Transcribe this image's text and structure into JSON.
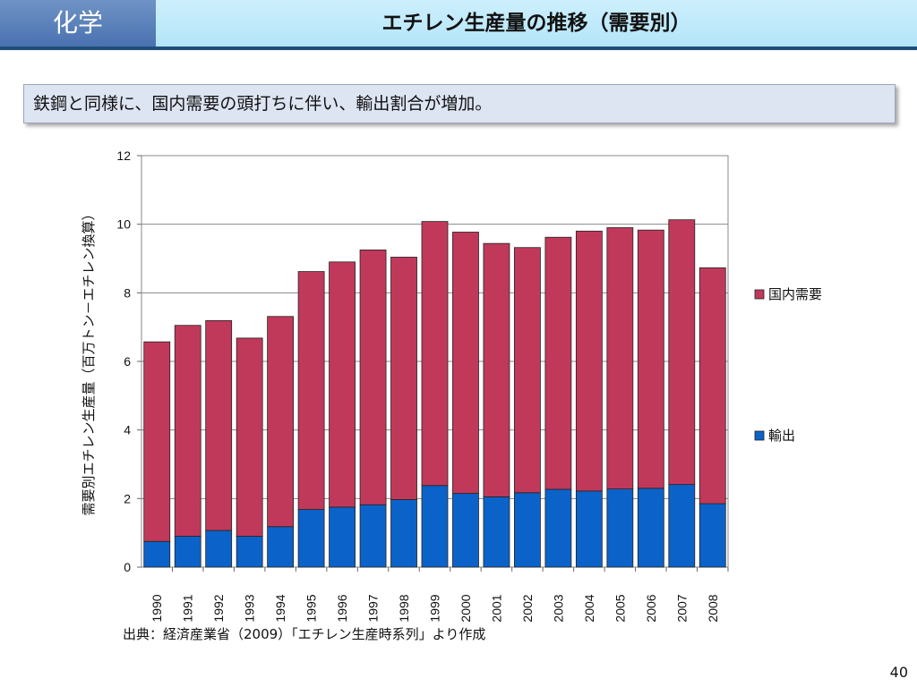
{
  "header": {
    "subject": "化学",
    "title": "エチレン生産量の推移（需要別）"
  },
  "message": "鉄鋼と同様に、国内需要の頭打ちに伴い、輸出割合が増加。",
  "colors": {
    "domestic": "#c1395a",
    "export": "#0b63c9",
    "header_rule": "#1f4e79"
  },
  "chart_data": {
    "type": "bar",
    "stacked": true,
    "ylabel": "需要別エチレン生産量（百万トン－エチレン換算）",
    "xlabel": "",
    "ylim": [
      0,
      12
    ],
    "yticks": [
      "0",
      "2",
      "4",
      "6",
      "8",
      "10",
      "12"
    ],
    "grid": true,
    "legend": "right",
    "categories": [
      "1990",
      "1991",
      "1992",
      "1993",
      "1994",
      "1995",
      "1996",
      "1997",
      "1998",
      "1999",
      "2000",
      "2001",
      "2002",
      "2003",
      "2004",
      "2005",
      "2006",
      "2007",
      "2008"
    ],
    "series": [
      {
        "name": "輸出",
        "color": "#0b63c9",
        "values": [
          0.75,
          0.9,
          1.07,
          0.9,
          1.18,
          1.68,
          1.75,
          1.82,
          1.97,
          2.38,
          2.15,
          2.05,
          2.17,
          2.27,
          2.22,
          2.28,
          2.3,
          2.41,
          1.85
        ]
      },
      {
        "name": "国内需要",
        "color": "#c1395a",
        "values": [
          5.82,
          6.15,
          6.12,
          5.78,
          6.13,
          6.94,
          7.15,
          7.43,
          7.07,
          7.7,
          7.62,
          7.39,
          7.15,
          7.35,
          7.58,
          7.62,
          7.53,
          7.72,
          6.88
        ]
      }
    ]
  },
  "source": "出典：経済産業省（2009）「エチレン生産時系列」より作成",
  "page_number": "40"
}
